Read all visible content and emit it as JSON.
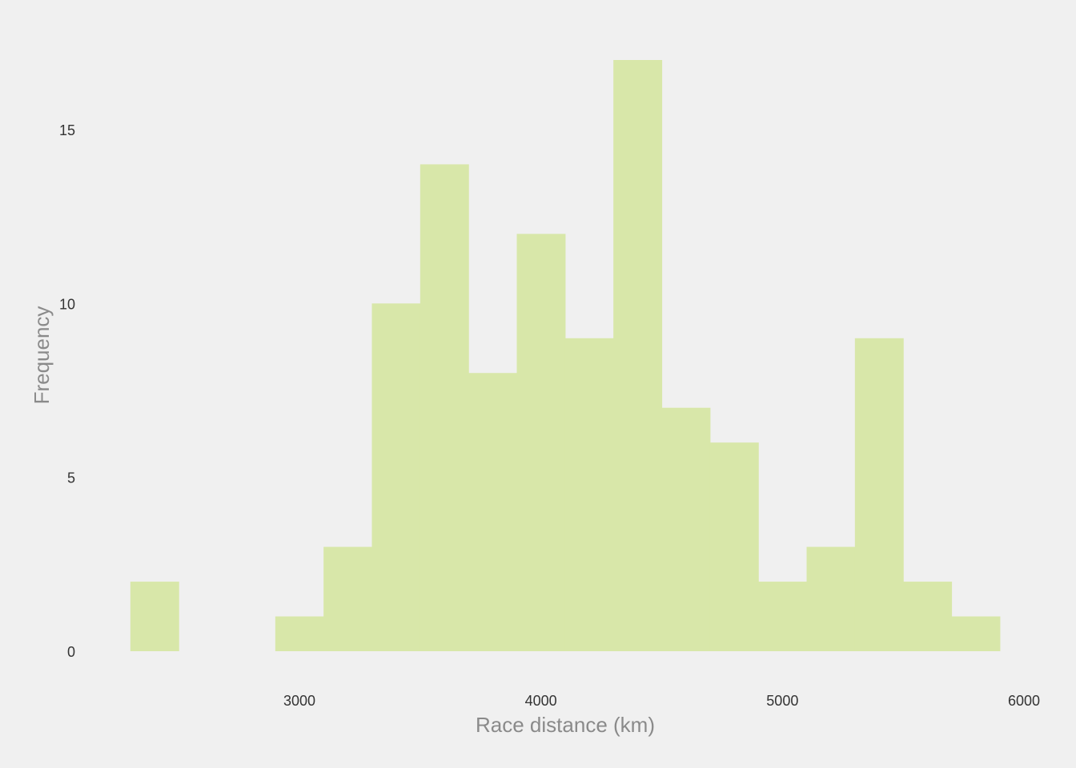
{
  "chart_data": {
    "type": "bar",
    "subtype": "histogram",
    "xlabel": "Race distance (km)",
    "ylabel": "Frequency",
    "bar_color": "#d8e7a9",
    "background_color": "#f0f0f0",
    "grid": false,
    "legend": "none",
    "bin_width": 200,
    "bins": [
      {
        "start": 2300,
        "end": 2500,
        "count": 2
      },
      {
        "start": 2500,
        "end": 2700,
        "count": 0
      },
      {
        "start": 2700,
        "end": 2900,
        "count": 0
      },
      {
        "start": 2900,
        "end": 3100,
        "count": 1
      },
      {
        "start": 3100,
        "end": 3300,
        "count": 3
      },
      {
        "start": 3300,
        "end": 3500,
        "count": 10
      },
      {
        "start": 3500,
        "end": 3700,
        "count": 14
      },
      {
        "start": 3700,
        "end": 3900,
        "count": 8
      },
      {
        "start": 3900,
        "end": 4100,
        "count": 12
      },
      {
        "start": 4100,
        "end": 4300,
        "count": 9
      },
      {
        "start": 4300,
        "end": 4500,
        "count": 17
      },
      {
        "start": 4500,
        "end": 4700,
        "count": 7
      },
      {
        "start": 4700,
        "end": 4900,
        "count": 6
      },
      {
        "start": 4900,
        "end": 5100,
        "count": 2
      },
      {
        "start": 5100,
        "end": 5300,
        "count": 3
      },
      {
        "start": 5300,
        "end": 5500,
        "count": 9
      },
      {
        "start": 5500,
        "end": 5700,
        "count": 2
      },
      {
        "start": 5700,
        "end": 5900,
        "count": 1
      }
    ],
    "xlim": [
      2000,
      6000
    ],
    "ylim": [
      0,
      17
    ],
    "x_ticks": [
      3000,
      4000,
      5000,
      6000
    ],
    "y_ticks": [
      0,
      5,
      10,
      15
    ]
  }
}
